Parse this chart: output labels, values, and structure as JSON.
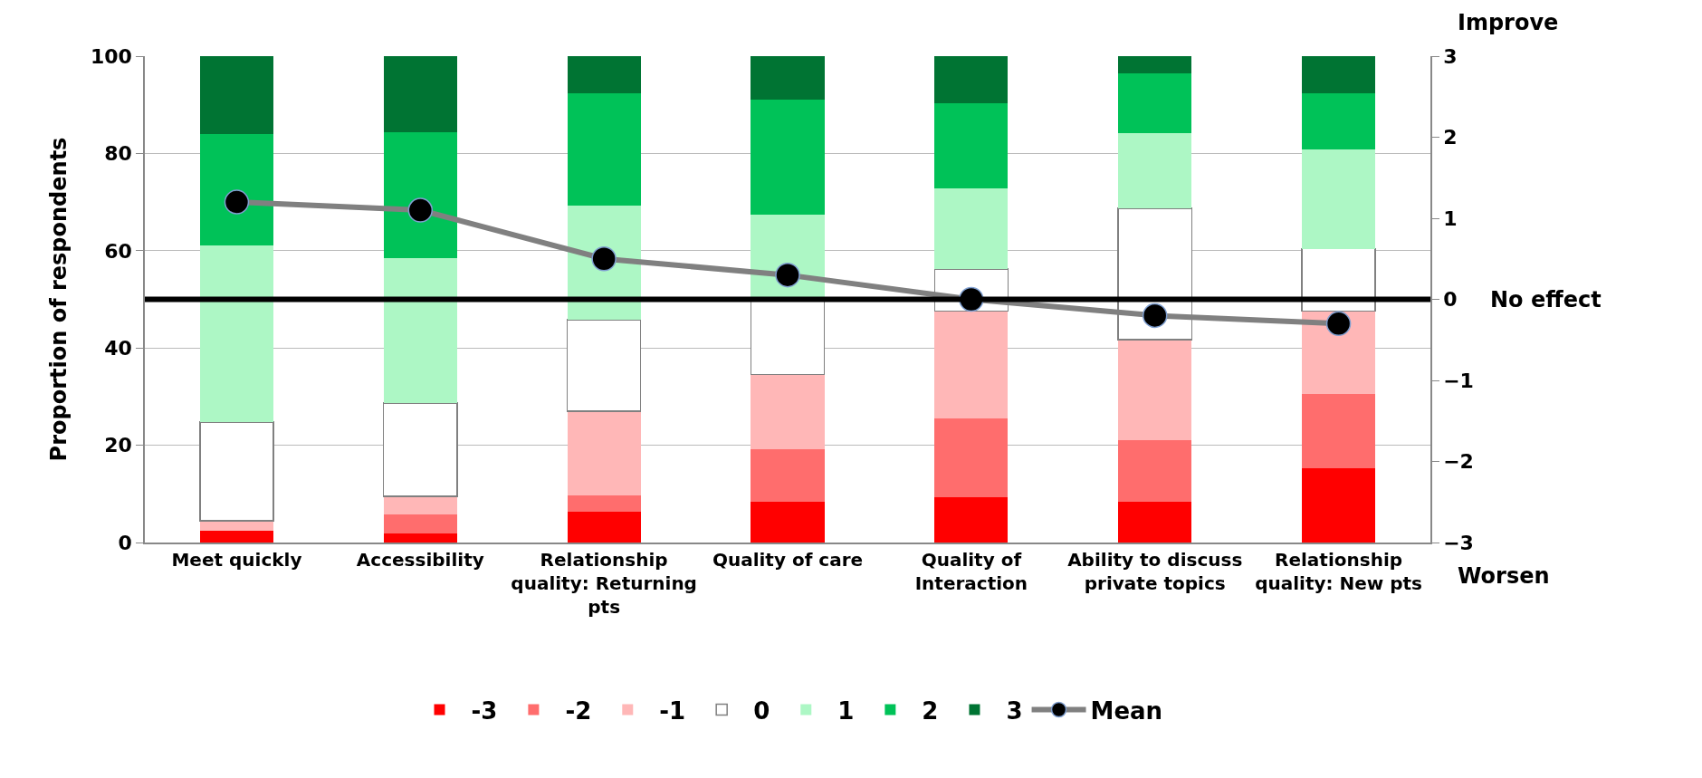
{
  "chart_data": {
    "type": "bar",
    "stacked": true,
    "ylabel": "Proportion of respondents",
    "categories": [
      "Meet quickly",
      "Accessibility",
      "Relationship quality: Returning pts",
      "Quality of care",
      "Quality of Interaction",
      "Ability to discuss private topics",
      "Relationship quality: New pts"
    ],
    "series": [
      {
        "name": "-3",
        "color": "#ff0000",
        "values": [
          2.4,
          1.9,
          6.4,
          8.3,
          9.4,
          8.4,
          15.3
        ]
      },
      {
        "name": "-2",
        "color": "#ff6d6d",
        "values": [
          0,
          3.9,
          3.2,
          10.9,
          16.1,
          12.7,
          15.3
        ]
      },
      {
        "name": "-1",
        "color": "#ffb7b7",
        "values": [
          2.1,
          3.7,
          17.4,
          15.3,
          22.1,
          20.6,
          17.0
        ]
      },
      {
        "name": "0",
        "color": "#ffffff",
        "values": [
          20.3,
          19.2,
          18.8,
          15.3,
          8.6,
          27.0,
          12.8
        ]
      },
      {
        "name": "1",
        "color": "#adf7c5",
        "values": [
          36.3,
          29.8,
          23.4,
          17.6,
          16.6,
          15.4,
          20.5
        ]
      },
      {
        "name": "2",
        "color": "#00c258",
        "values": [
          22.9,
          25.9,
          23.1,
          23.6,
          17.6,
          12.3,
          11.4
        ]
      },
      {
        "name": "3",
        "color": "#007433",
        "values": [
          16.0,
          15.6,
          7.7,
          9.0,
          9.6,
          3.6,
          7.7
        ]
      },
      {
        "name": "Mean",
        "type": "line",
        "axis": "y2",
        "color": "#808080",
        "values": [
          1.2,
          1.1,
          0.5,
          0.3,
          0.0,
          -0.2,
          -0.3
        ]
      }
    ],
    "ylim": [
      0,
      100
    ],
    "yticks": [
      0,
      20,
      40,
      60,
      80,
      100
    ],
    "y2lim": [
      -3,
      3
    ],
    "y2ticks": [
      -3,
      -2,
      -1,
      0,
      1,
      2,
      3
    ],
    "ref_lines": [
      {
        "axis": "y",
        "value": 50,
        "label": "No effect",
        "color": "#000000"
      }
    ],
    "annotations": [
      "Improve",
      "Worsen"
    ],
    "grid": "y",
    "legend": "bottom",
    "marker": "circle"
  }
}
